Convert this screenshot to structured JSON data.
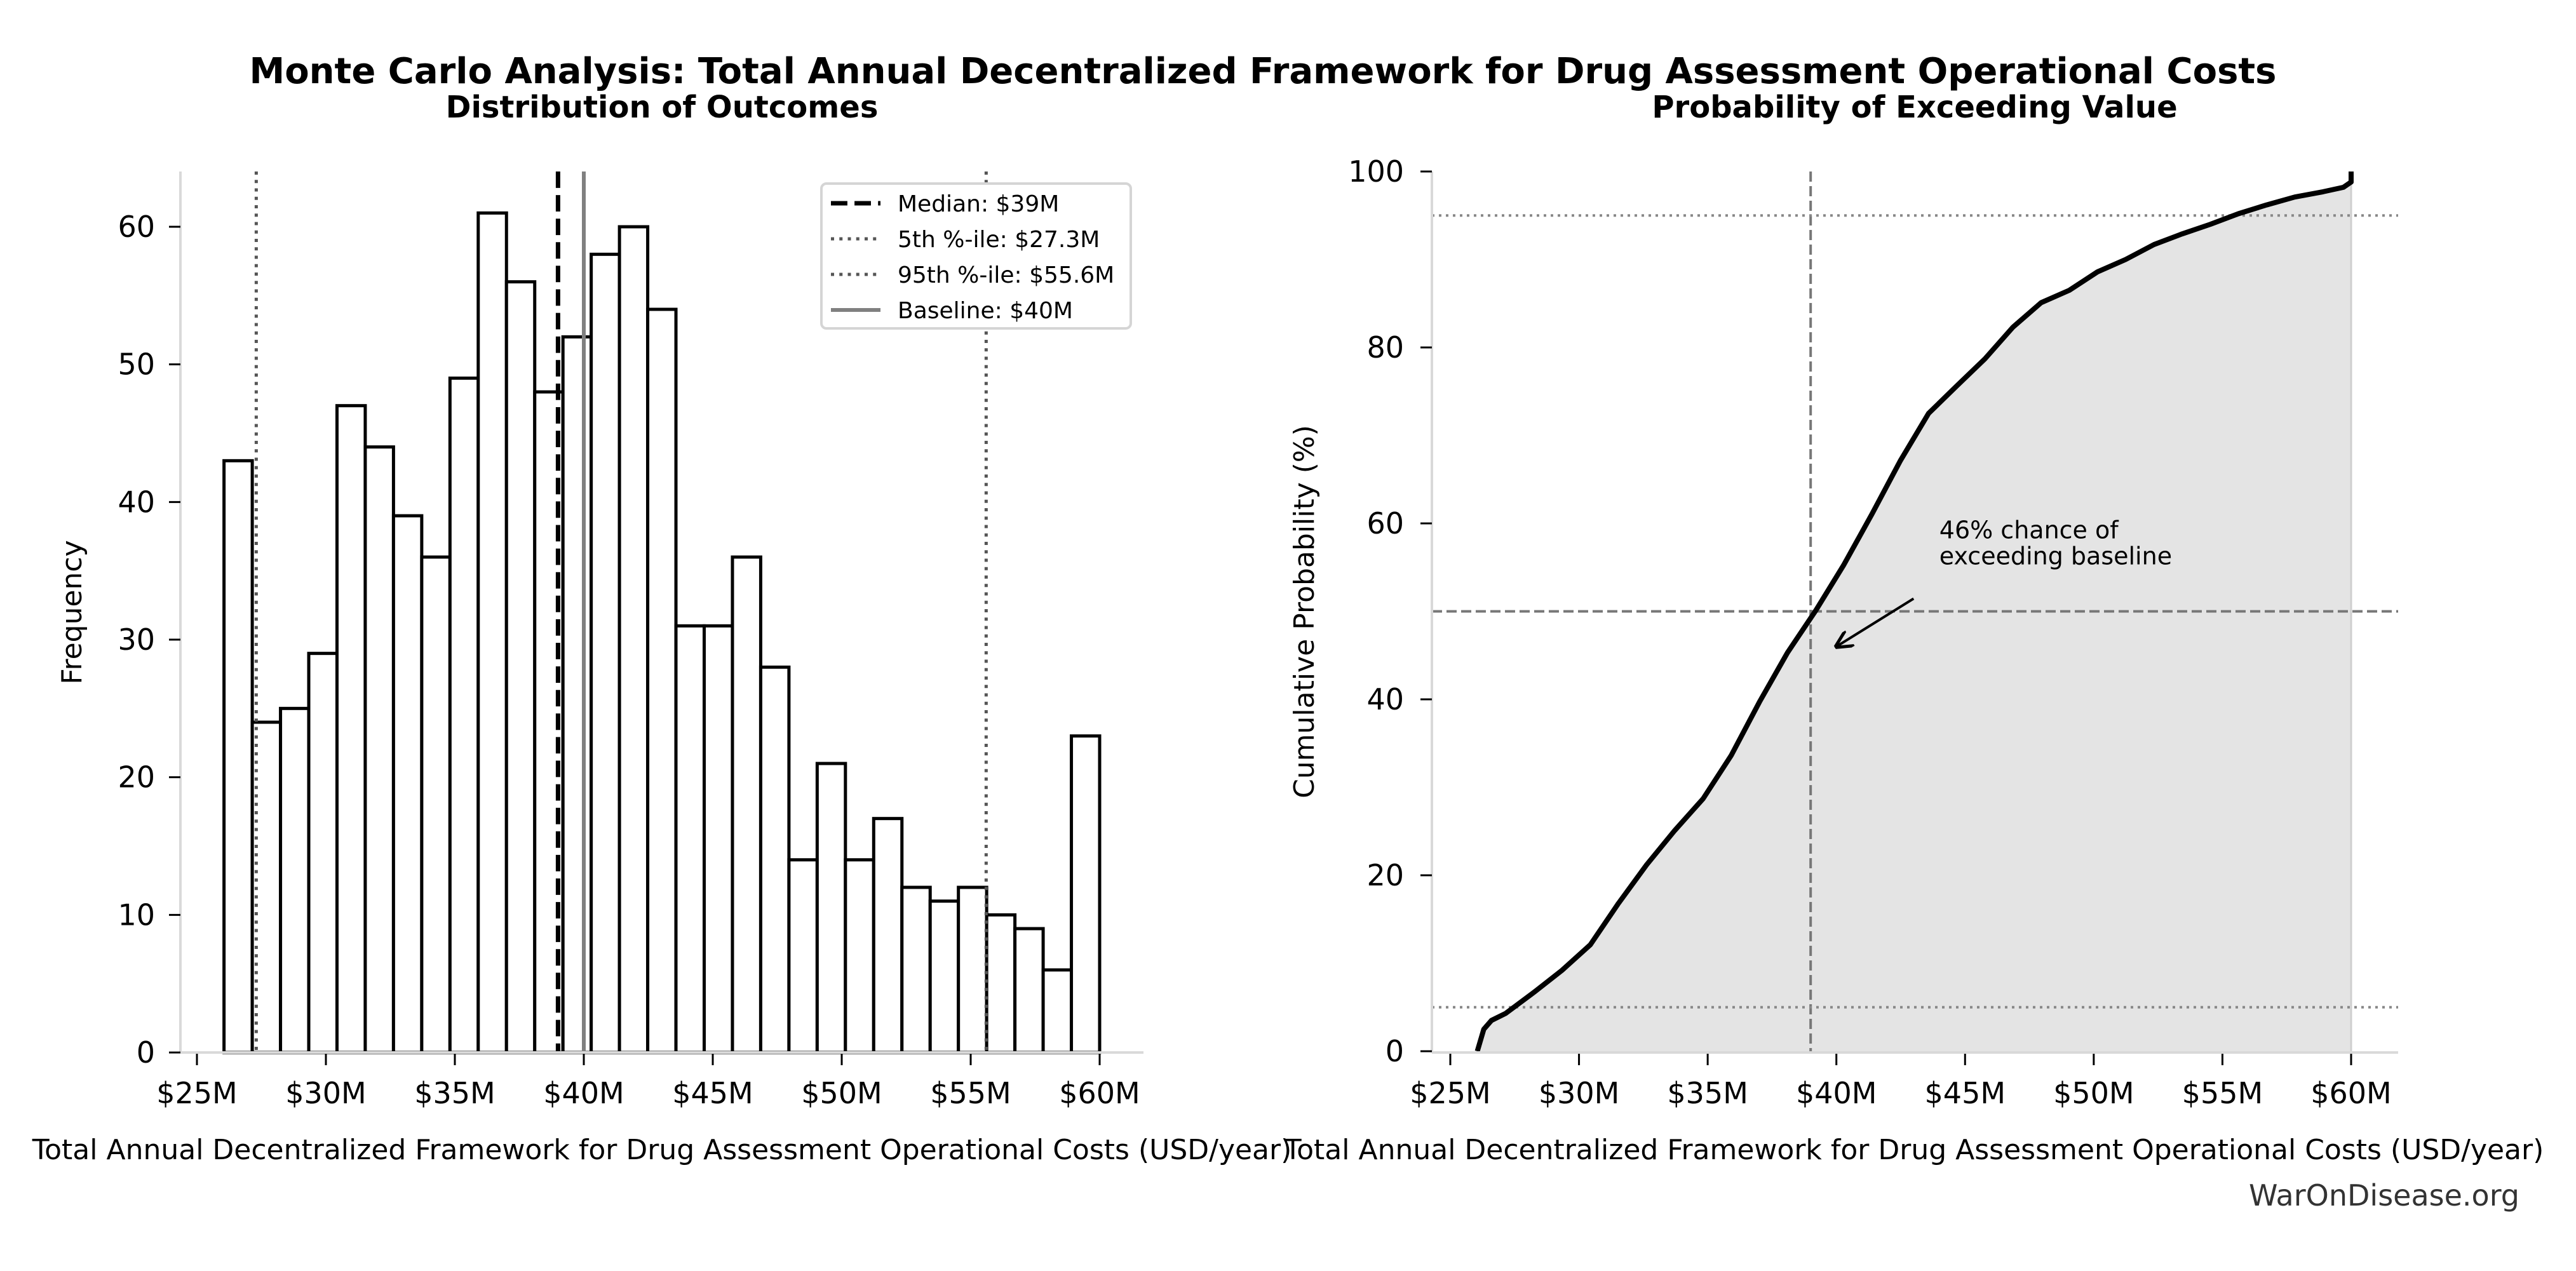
{
  "figure": {
    "suptitle": "Monte Carlo Analysis: Total Annual Decentralized Framework for Drug Assessment Operational Costs",
    "watermark": "WarOnDisease.org"
  },
  "chart_data": [
    {
      "type": "bar",
      "subtype": "histogram",
      "title": "Distribution of Outcomes",
      "xlabel": "Total Annual Decentralized Framework for Drug Assessment Operational Costs (USD/year)",
      "ylabel": "Frequency",
      "xlim": [
        24.6,
        61.8
      ],
      "ylim": [
        0,
        64
      ],
      "xticks": [
        25,
        30,
        35,
        40,
        45,
        50,
        55,
        60
      ],
      "xtick_labels": [
        "$25M",
        "$30M",
        "$35M",
        "$40M",
        "$45M",
        "$50M",
        "$55M",
        "$60M"
      ],
      "yticks": [
        0,
        10,
        20,
        30,
        40,
        50,
        60
      ],
      "ytick_labels": [
        "0",
        "10",
        "20",
        "30",
        "40",
        "50",
        "60"
      ],
      "bin_start": 26.05,
      "bin_end": 60.0,
      "values": [
        43,
        24,
        25,
        29,
        47,
        44,
        39,
        36,
        49,
        61,
        56,
        48,
        52,
        58,
        60,
        54,
        31,
        31,
        36,
        28,
        14,
        21,
        14,
        17,
        12,
        11,
        12,
        10,
        9,
        6,
        23
      ],
      "grid": false,
      "legend_position": "top-right",
      "reference_lines": [
        {
          "name": "median",
          "value": 39.0,
          "label": "Median: $39M",
          "style": "dashed",
          "color": "#000000"
        },
        {
          "name": "p5",
          "value": 27.3,
          "label": "5th %-ile: $27.3M",
          "style": "dotted",
          "color": "#555555"
        },
        {
          "name": "p95",
          "value": 55.6,
          "label": "95th %-ile: $55.6M",
          "style": "dotted",
          "color": "#555555"
        },
        {
          "name": "baseline",
          "value": 40.0,
          "label": "Baseline: $40M",
          "style": "solid",
          "color": "#808080"
        }
      ]
    },
    {
      "type": "area",
      "title": "Probability of Exceeding Value",
      "xlabel": "Total Annual Decentralized Framework for Drug Assessment Operational Costs (USD/year)",
      "ylabel": "Cumulative Probability (%)",
      "xlim": [
        24.6,
        61.8
      ],
      "ylim": [
        0,
        100
      ],
      "xticks": [
        25,
        30,
        35,
        40,
        45,
        50,
        55,
        60
      ],
      "xtick_labels": [
        "$25M",
        "$30M",
        "$35M",
        "$40M",
        "$45M",
        "$50M",
        "$55M",
        "$60M"
      ],
      "yticks": [
        0,
        20,
        40,
        60,
        80,
        100
      ],
      "ytick_labels": [
        "0",
        "20",
        "40",
        "60",
        "80",
        "100"
      ],
      "grid": false,
      "series": [
        {
          "name": "cumulative",
          "x": [
            26.05,
            26.3,
            26.6,
            27.15,
            28.25,
            29.34,
            30.44,
            31.53,
            32.63,
            33.72,
            34.82,
            35.91,
            37.01,
            38.1,
            39.2,
            40.29,
            41.39,
            42.48,
            43.58,
            44.67,
            45.77,
            46.86,
            47.96,
            49.05,
            50.15,
            51.24,
            52.34,
            53.43,
            54.53,
            55.62,
            56.72,
            57.81,
            58.91,
            59.7,
            60.0,
            60.0
          ],
          "y": [
            0,
            2.5,
            3.5,
            4.3,
            6.7,
            9.2,
            12.1,
            16.8,
            21.2,
            25.1,
            28.7,
            33.6,
            39.7,
            45.3,
            50.1,
            55.3,
            61.1,
            67.1,
            72.5,
            75.6,
            78.7,
            82.3,
            85.1,
            86.5,
            88.6,
            90.0,
            91.7,
            92.9,
            94.0,
            95.2,
            96.2,
            97.1,
            97.7,
            98.2,
            98.8,
            100
          ]
        }
      ],
      "reference_lines": [
        {
          "name": "median-vertical",
          "axis": "x",
          "value": 39.0,
          "style": "dashed",
          "color": "#777777"
        },
        {
          "name": "fifty-percent-horizontal",
          "axis": "y",
          "value": 50,
          "style": "dashed",
          "color": "#777777"
        },
        {
          "name": "p5-horizontal",
          "axis": "y",
          "value": 5,
          "style": "dotted",
          "color": "#888888"
        },
        {
          "name": "p95-horizontal",
          "axis": "y",
          "value": 95,
          "style": "dotted",
          "color": "#888888"
        }
      ],
      "fill_color": "#e4e4e4",
      "annotation": {
        "text_lines": [
          "46% chance of",
          "exceeding baseline"
        ],
        "text_x": 44.0,
        "text_y": 57.5,
        "arrow_from_x": 43.0,
        "arrow_from_y": 50.8,
        "arrow_to_x": 40.0,
        "arrow_to_y": 46.0
      }
    }
  ]
}
